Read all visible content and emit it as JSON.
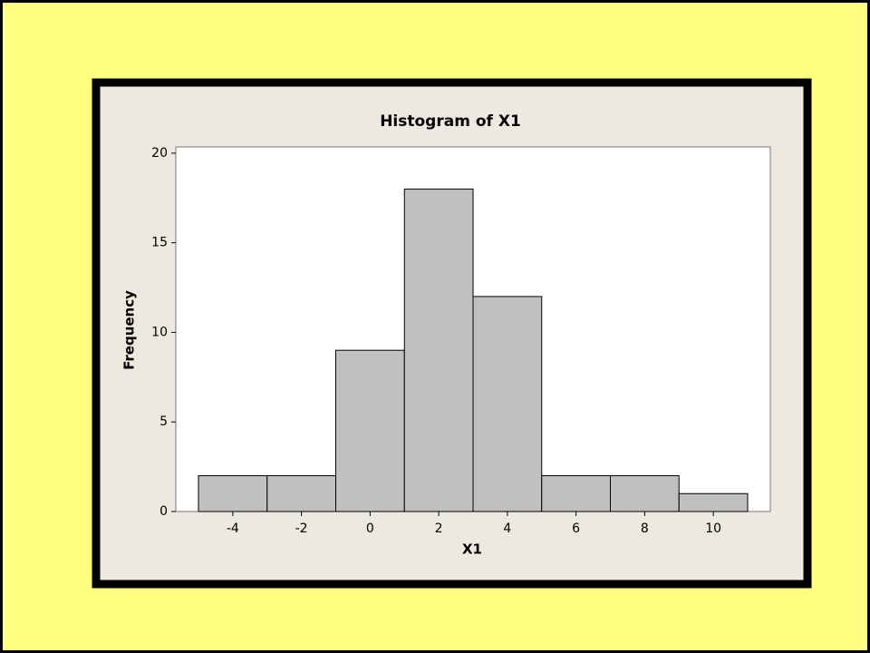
{
  "chart_data": {
    "type": "histogram",
    "title": "Histogram of X1",
    "x_label": "X1",
    "y_label": "Frequency",
    "bins": [
      -5,
      -3,
      -1,
      1,
      3,
      5,
      7,
      9,
      11
    ],
    "counts": [
      2,
      2,
      9,
      18,
      12,
      2,
      2,
      1
    ],
    "color": "#c0c0c0",
    "xlim": [
      -5.66,
      11.66
    ],
    "xticks": [
      -4,
      -2,
      0,
      2,
      4,
      6,
      8,
      10
    ],
    "ylim": [
      0,
      20.35
    ],
    "yticks": [
      0,
      5,
      10,
      15,
      20
    ]
  }
}
